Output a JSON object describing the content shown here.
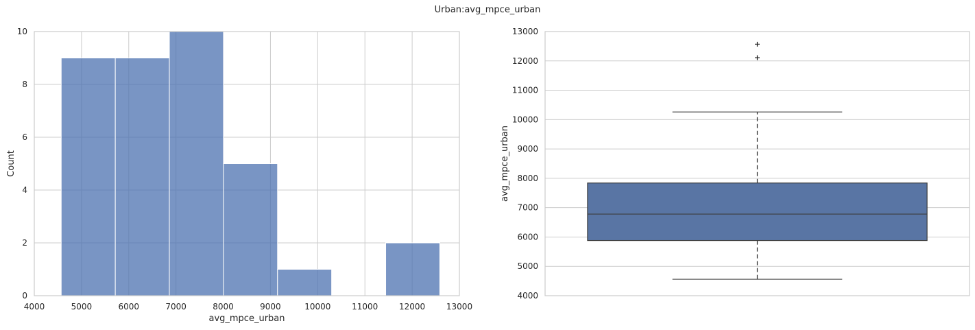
{
  "figure_title": "Urban:avg_mpce_urban",
  "chart_data": [
    {
      "type": "bar",
      "subtype": "histogram",
      "xlabel": "avg_mpce_urban",
      "ylabel": "Count",
      "xlim": [
        4000,
        13000
      ],
      "ylim": [
        0,
        10
      ],
      "xticks": [
        4000,
        5000,
        6000,
        7000,
        8000,
        9000,
        10000,
        11000,
        12000,
        13000
      ],
      "yticks": [
        0,
        2,
        4,
        6,
        8,
        10
      ],
      "bin_edges": [
        4570,
        5715,
        6860,
        8005,
        9150,
        10295,
        11440,
        12585
      ],
      "values": [
        9,
        9,
        10,
        5,
        1,
        0,
        2
      ],
      "color": "#4c72b0",
      "grid": true
    },
    {
      "type": "box",
      "ylabel": "avg_mpce_urban",
      "ylim": [
        4000,
        13000
      ],
      "yticks": [
        4000,
        5000,
        6000,
        7000,
        8000,
        9000,
        10000,
        11000,
        12000,
        13000
      ],
      "whisker_low": 4560,
      "q1": 5880,
      "median": 6780,
      "q3": 7840,
      "whisker_high": 10260,
      "outliers": [
        12110,
        12570
      ],
      "color": "#5975a4",
      "grid": true
    }
  ]
}
